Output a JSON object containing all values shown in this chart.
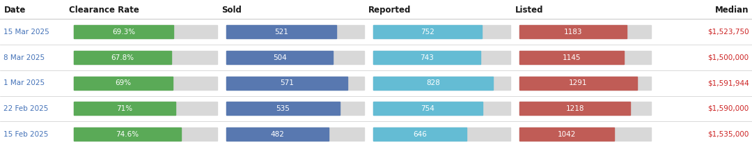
{
  "headers": [
    "Date",
    "Clearance Rate",
    "Sold",
    "Reported",
    "Listed",
    "Median"
  ],
  "rows": [
    {
      "date": "15 Mar 2025",
      "clearance_rate": 69.3,
      "clearance_label": "69.3%",
      "sold": 521,
      "reported": 752,
      "listed": 1183,
      "median": "$1,523,750"
    },
    {
      "date": "8 Mar 2025",
      "clearance_rate": 67.8,
      "clearance_label": "67.8%",
      "sold": 504,
      "reported": 743,
      "listed": 1145,
      "median": "$1,500,000"
    },
    {
      "date": "1 Mar 2025",
      "clearance_rate": 69.0,
      "clearance_label": "69%",
      "sold": 571,
      "reported": 828,
      "listed": 1291,
      "median": "$1,591,944"
    },
    {
      "date": "22 Feb 2025",
      "clearance_rate": 71.0,
      "clearance_label": "71%",
      "sold": 535,
      "reported": 754,
      "listed": 1218,
      "median": "$1,590,000"
    },
    {
      "date": "15 Feb 2025",
      "clearance_rate": 74.6,
      "clearance_label": "74.6%",
      "sold": 482,
      "reported": 646,
      "listed": 1042,
      "median": "$1,535,000"
    }
  ],
  "colors": {
    "clearance_bar": "#5aaa57",
    "sold_bar": "#5878b0",
    "reported_bar": "#64bcd4",
    "listed_bar": "#c05c56",
    "bg_bar": "#d8d8d8",
    "date_text": "#4472b8",
    "header_text": "#1a1a1a",
    "median_text": "#cc2222",
    "bar_label": "#ffffff",
    "divider": "#cccccc",
    "background": "#ffffff"
  },
  "clearance_max": 100,
  "sold_max": 650,
  "reported_max": 950,
  "listed_max": 1450,
  "header_fontsize": 8.5,
  "label_fontsize": 7.5,
  "date_fontsize": 7.5,
  "median_fontsize": 7.5,
  "col_starts": [
    0.005,
    0.092,
    0.295,
    0.49,
    0.685,
    0.872
  ],
  "col_ends": [
    0.092,
    0.295,
    0.49,
    0.685,
    0.872,
    0.998
  ]
}
